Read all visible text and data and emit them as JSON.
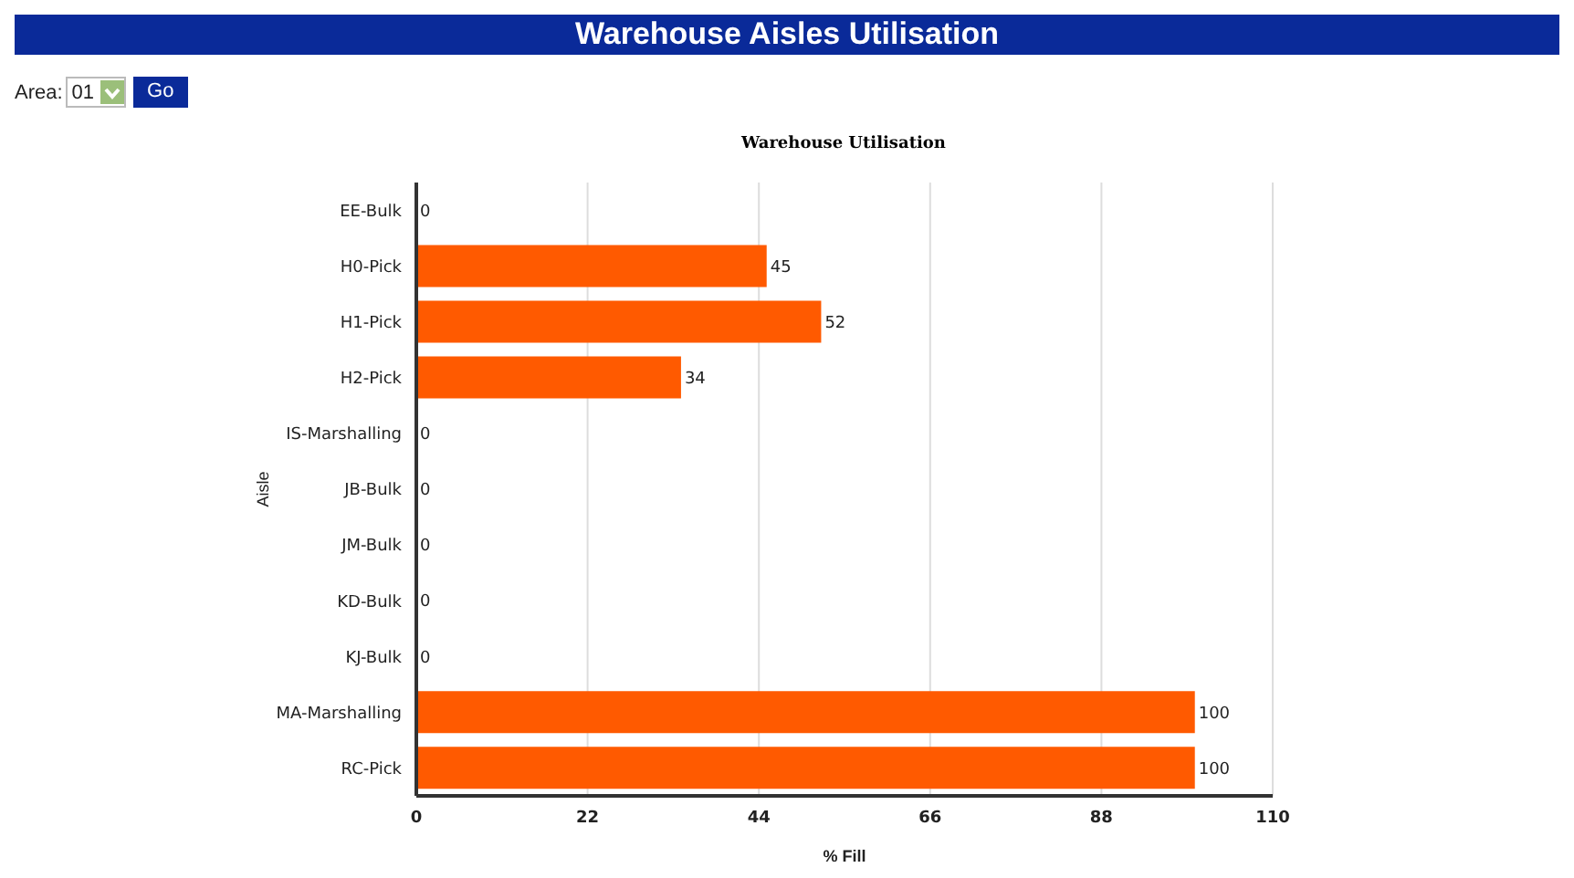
{
  "chart_data": {
    "type": "bar",
    "orientation": "horizontal",
    "title": "Warehouse Aisles Utilisation",
    "subtitle": "Warehouse Utilisation",
    "xlabel": "% Fill",
    "ylabel": "Aisle",
    "categories": [
      "EE-Bulk",
      "H0-Pick",
      "H1-Pick",
      "H2-Pick",
      "IS-Marshalling",
      "JB-Bulk",
      "JM-Bulk",
      "KD-Bulk",
      "KJ-Bulk",
      "MA-Marshalling",
      "RC-Pick"
    ],
    "values": [
      0,
      45,
      52,
      34,
      0,
      0,
      0,
      0,
      0,
      100,
      100
    ],
    "color": "#ff5a00",
    "xlim": [
      0,
      110
    ],
    "xticks": [
      0,
      22,
      44,
      66,
      88,
      110
    ],
    "grid": "x",
    "data_labels": true,
    "annotations": [
      "Area:",
      "01",
      "Go"
    ]
  }
}
